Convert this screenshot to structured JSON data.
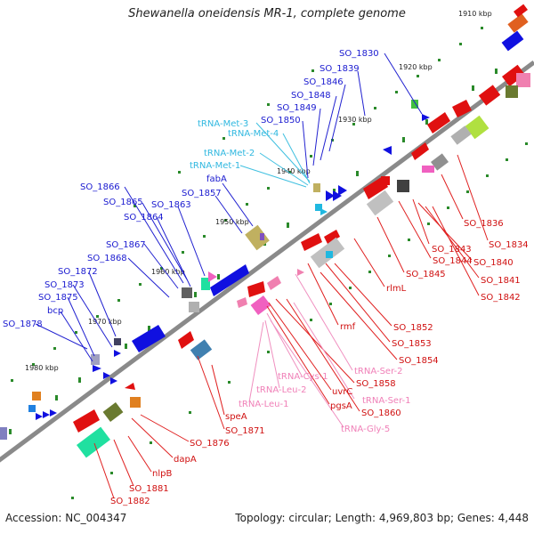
{
  "title": "Shewanella oneidensis MR-1, complete genome",
  "footer": {
    "accession": "Accession: NC_004347",
    "summary": "Topology: circular; Length: 4,969,803 bp; Genes: 4,448"
  },
  "colors": {
    "forward_gene": "#1010e0",
    "reverse_gene": "#e01010",
    "trna_forward": "#20b8e0",
    "trna_reverse": "#f080b0",
    "backbone": "#888888",
    "tick": "#2a8a2a"
  },
  "kbp_ticks": [
    "1910 kbp",
    "1920 kbp",
    "1930 kbp",
    "1940 kbp",
    "1950 kbp",
    "1960 kbp",
    "1970 kbp",
    "1980 kbp"
  ],
  "forward_labels": [
    "SO_1830",
    "SO_1839",
    "SO_1846",
    "SO_1848",
    "SO_1849",
    "SO_1850",
    "tRNA-Met-3",
    "tRNA-Met-4",
    "tRNA-Met-2",
    "tRNA-Met-1",
    "fabA",
    "SO_1857",
    "SO_1866",
    "SO_1865",
    "SO_1863",
    "SO_1864",
    "SO_1867",
    "SO_1868",
    "SO_1872",
    "SO_1873",
    "SO_1875",
    "bcp",
    "SO_1878"
  ],
  "reverse_labels": [
    "SO_1836",
    "SO_1834",
    "SO_1843",
    "SO_1840",
    "SO_1844",
    "SO_1841",
    "SO_1845",
    "SO_1842",
    "rlmL",
    "rmf",
    "SO_1852",
    "SO_1853",
    "SO_1854",
    "tRNA-Ser-2",
    "tRNA-Cys-1",
    "SO_1858",
    "uvrC",
    "tRNA-Leu-2",
    "tRNA-Ser-1",
    "tRNA-Leu-1",
    "pgsA",
    "SO_1860",
    "tRNA-Gly-5",
    "speA",
    "SO_1871",
    "SO_1876",
    "dapA",
    "nlpB",
    "SO_1881",
    "SO_1882"
  ]
}
